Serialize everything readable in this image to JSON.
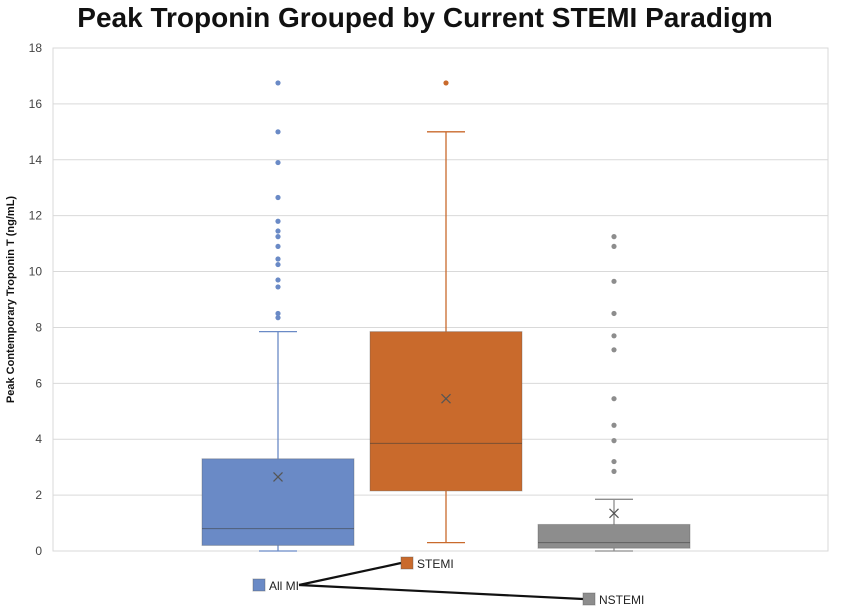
{
  "chart_data": {
    "type": "box",
    "title": "Peak Troponin Grouped by Current STEMI Paradigm",
    "ylabel": "Peak Contemporary Troponin T (ng/mL)",
    "xlabel": "",
    "ylim": [
      0,
      18
    ],
    "yticks": [
      "0",
      "2",
      "4",
      "6",
      "8",
      "10",
      "12",
      "14",
      "16",
      "18"
    ],
    "grid": true,
    "series": [
      {
        "name": "All MI",
        "color": "#6a8ac6",
        "min": 0.0,
        "q1": 0.2,
        "median": 0.8,
        "q3": 3.3,
        "max": 7.85,
        "mean": 2.65,
        "outliers": [
          8.35,
          8.5,
          9.45,
          9.7,
          10.25,
          10.45,
          10.9,
          11.25,
          11.45,
          11.8,
          12.65,
          13.9,
          15.0,
          16.75
        ]
      },
      {
        "name": "STEMI",
        "color": "#c96a2c",
        "min": 0.3,
        "q1": 2.15,
        "median": 3.85,
        "q3": 7.85,
        "max": 15.0,
        "mean": 5.45,
        "outliers": [
          16.75
        ]
      },
      {
        "name": "NSTEMI",
        "color": "#8d8d8d",
        "min": 0.0,
        "q1": 0.1,
        "median": 0.3,
        "q3": 0.95,
        "max": 1.85,
        "mean": 1.35,
        "outliers": [
          2.85,
          3.2,
          3.95,
          4.5,
          5.45,
          7.2,
          7.7,
          8.5,
          9.65,
          10.9,
          11.25
        ]
      }
    ],
    "legend": [
      "STEMI",
      "All MI",
      "NSTEMI"
    ]
  }
}
